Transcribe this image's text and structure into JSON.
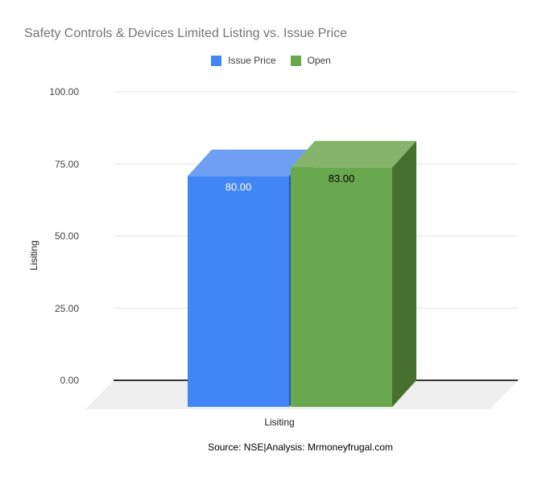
{
  "page": {
    "background": "#ffffff"
  },
  "header": {
    "title": "Safety Controls & Devices Limited Listing vs. Issue Price",
    "title_color": "#757575"
  },
  "legend": {
    "position": "top",
    "items": [
      {
        "label": "Issue Price",
        "color": "#4285f4"
      },
      {
        "label": "Open",
        "color": "#6aa84f"
      }
    ]
  },
  "y_axis": {
    "title": "Lisiting",
    "tick_color": "#424242"
  },
  "x_axis": {
    "label": "Lisiting"
  },
  "footer": {
    "source": "Source: NSE|Analysis: Mrmoneyfrugal.com"
  },
  "chart_data": {
    "type": "bar",
    "effect": "3d",
    "title": "Safety Controls & Devices Limited Listing vs. Issue Price",
    "categories": [
      "Lisiting"
    ],
    "series": [
      {
        "name": "Issue Price",
        "values": [
          80
        ],
        "data_label": "80.00",
        "color": "#4285f4",
        "top_color": "#6f9ff5",
        "side_color": "#2b55b0",
        "label_color": "#ffffff"
      },
      {
        "name": "Open",
        "values": [
          83
        ],
        "data_label": "83.00",
        "color": "#6aa84f",
        "top_color": "#84b56b",
        "side_color": "#47702f",
        "label_color": "#000000"
      }
    ],
    "xlabel": "Lisiting",
    "ylabel": "Lisiting",
    "ylim": [
      0,
      100
    ],
    "yticks": [
      0,
      25,
      50,
      75,
      100
    ],
    "ytick_labels": [
      "0.00",
      "25.00",
      "50.00",
      "75.00",
      "100.00"
    ],
    "grid": true,
    "gridline_color": "#e6e6e6",
    "baseline_color": "#333333",
    "floor_color": "#efefef",
    "legend_position": "top"
  }
}
